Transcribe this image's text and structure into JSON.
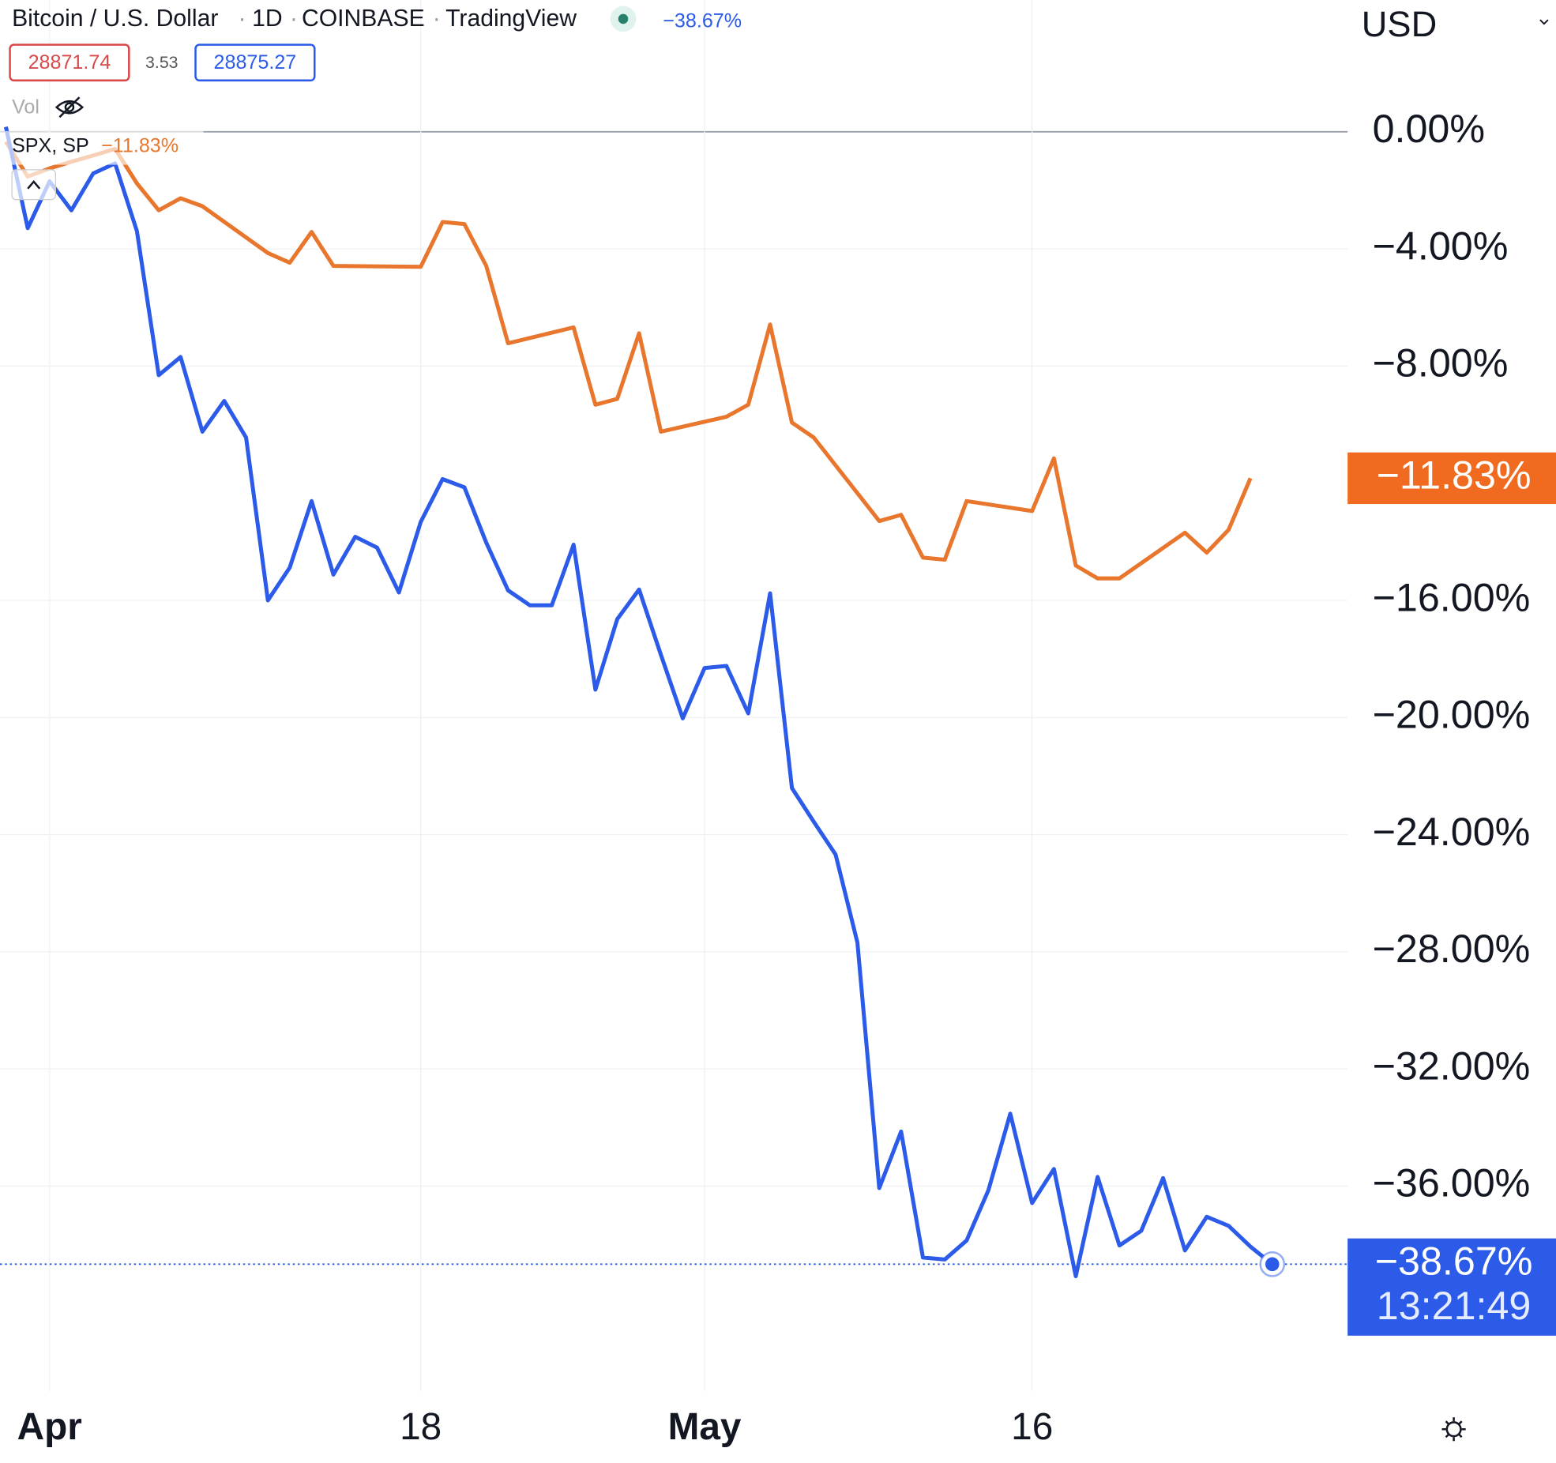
{
  "chart_data": {
    "type": "line",
    "interval": "1D",
    "exchange": "COINBASE",
    "source": "TradingView",
    "bid": 28871.74,
    "spread": 3.53,
    "ask": 28875.27,
    "volume_label": "Vol",
    "currency": "USD",
    "countdown": "13:21:49",
    "xlim": [
      -2.27,
      59.45
    ],
    "xticks": [
      {
        "value": 0,
        "label": "Apr"
      },
      {
        "value": 17,
        "label": "18"
      },
      {
        "value": 30,
        "label": "May"
      },
      {
        "value": 45,
        "label": "16"
      }
    ],
    "ylim": [
      -43,
      4.5
    ],
    "yticks": [
      {
        "value": 0,
        "label": "0.00%"
      },
      {
        "value": -4,
        "label": "−4.00%"
      },
      {
        "value": -8,
        "label": "−8.00%"
      },
      {
        "value": -16,
        "label": "−16.00%"
      },
      {
        "value": -20,
        "label": "−20.00%"
      },
      {
        "value": -24,
        "label": "−24.00%"
      },
      {
        "value": -28,
        "label": "−28.00%"
      },
      {
        "value": -32,
        "label": "−32.00%"
      },
      {
        "value": -36,
        "label": "−36.00%"
      }
    ],
    "grid": true,
    "series": [
      {
        "name": "Bitcoin / U.S. Dollar",
        "color": "#2b5be8",
        "last_value": {
          "value": -38.67,
          "label": "−38.67%"
        },
        "x": [
          -2,
          -1,
          0,
          1,
          2,
          3,
          4,
          5,
          6,
          7,
          8,
          9,
          10,
          11,
          12,
          13,
          14,
          15,
          16,
          17,
          18,
          19,
          20,
          21,
          22,
          23,
          24,
          25,
          26,
          27,
          28,
          29,
          30,
          31,
          32,
          33,
          34,
          35,
          36,
          37,
          38,
          39,
          40,
          41,
          42,
          43,
          44,
          45,
          46,
          47,
          48,
          49,
          50,
          51,
          52,
          53,
          54,
          55,
          56
        ],
        "values": [
          0.17,
          -3.29,
          -1.69,
          -2.68,
          -1.42,
          -1.08,
          -3.39,
          -8.31,
          -7.69,
          -10.24,
          -9.19,
          -10.44,
          -16.0,
          -14.88,
          -12.61,
          -15.12,
          -13.83,
          -14.2,
          -15.73,
          -13.32,
          -11.86,
          -12.14,
          -14.03,
          -15.66,
          -16.17,
          -16.17,
          -14.1,
          -19.05,
          -16.64,
          -15.63,
          -17.86,
          -20.03,
          -18.31,
          -18.24,
          -19.86,
          -15.76,
          -22.41,
          -23.56,
          -24.68,
          -27.69,
          -36.07,
          -34.14,
          -38.44,
          -38.51,
          -37.86,
          -36.14,
          -33.53,
          -36.58,
          -35.42,
          -39.08,
          -35.69,
          -38.03,
          -37.53,
          -35.73,
          -38.2,
          -37.05,
          -37.36,
          -38.07,
          -38.67
        ]
      },
      {
        "name": "SPX, SP",
        "color": "#e8762d",
        "last_value": {
          "value": -11.83,
          "label": "−11.83%"
        },
        "x": [
          -2,
          -1,
          0,
          1,
          2,
          3,
          4,
          5,
          6,
          7,
          10,
          11,
          12,
          13,
          17,
          18,
          19,
          20,
          21,
          24,
          25,
          26,
          27,
          28,
          31,
          32,
          33,
          34,
          35,
          38,
          39,
          40,
          41,
          42,
          45,
          46,
          47,
          48,
          49,
          52,
          53,
          54,
          55
        ],
        "values": [
          -0.34,
          -1.53,
          -1.25,
          -1.02,
          -0.81,
          -0.58,
          -1.76,
          -2.68,
          -2.27,
          -2.54,
          -4.14,
          -4.47,
          -3.42,
          -4.58,
          -4.61,
          -3.08,
          -3.15,
          -4.58,
          -7.22,
          -6.68,
          -9.32,
          -9.12,
          -6.88,
          -10.24,
          -9.73,
          -9.32,
          -6.58,
          -9.93,
          -10.44,
          -13.29,
          -13.08,
          -14.54,
          -14.61,
          -12.61,
          -12.95,
          -11.15,
          -14.81,
          -15.25,
          -15.25,
          -13.69,
          -14.37,
          -13.59,
          -11.83
        ]
      }
    ]
  }
}
